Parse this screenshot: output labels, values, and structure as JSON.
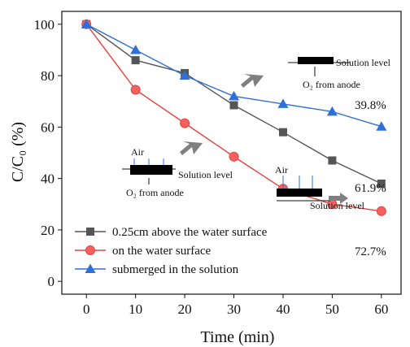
{
  "chart_data": {
    "type": "line",
    "title": "",
    "xlabel": "Time (min)",
    "ylabel": "C/C₀ (%)",
    "xlim": [
      -5,
      64
    ],
    "ylim": [
      -5,
      105
    ],
    "x_ticks": [
      0,
      10,
      20,
      30,
      40,
      50,
      60
    ],
    "y_ticks": [
      0,
      20,
      40,
      60,
      80,
      100
    ],
    "grid": false,
    "legend_position": "bottom-left",
    "x": [
      0,
      10,
      20,
      30,
      40,
      50,
      60
    ],
    "series": [
      {
        "name": "0.25cm above the water surface",
        "values": [
          100,
          86,
          81,
          68.5,
          58,
          47,
          38
        ],
        "color": "#555555",
        "marker": "square"
      },
      {
        "name": "on the water surface",
        "values": [
          100,
          74.5,
          61.5,
          48.5,
          36,
          30,
          27.3
        ],
        "color": "#e8413f",
        "marker": "circle"
      },
      {
        "name": "submerged in the solution",
        "values": [
          100,
          90,
          80,
          72,
          69,
          66,
          60.2
        ],
        "color": "#2f6fd8",
        "marker": "triangle"
      }
    ],
    "end_labels": [
      "61.9%",
      "72.7%",
      "39.8%"
    ],
    "inset_labels": {
      "air": "Air",
      "solution_level": "Solution level",
      "o2_from_anode": "O₂ from anode"
    }
  }
}
